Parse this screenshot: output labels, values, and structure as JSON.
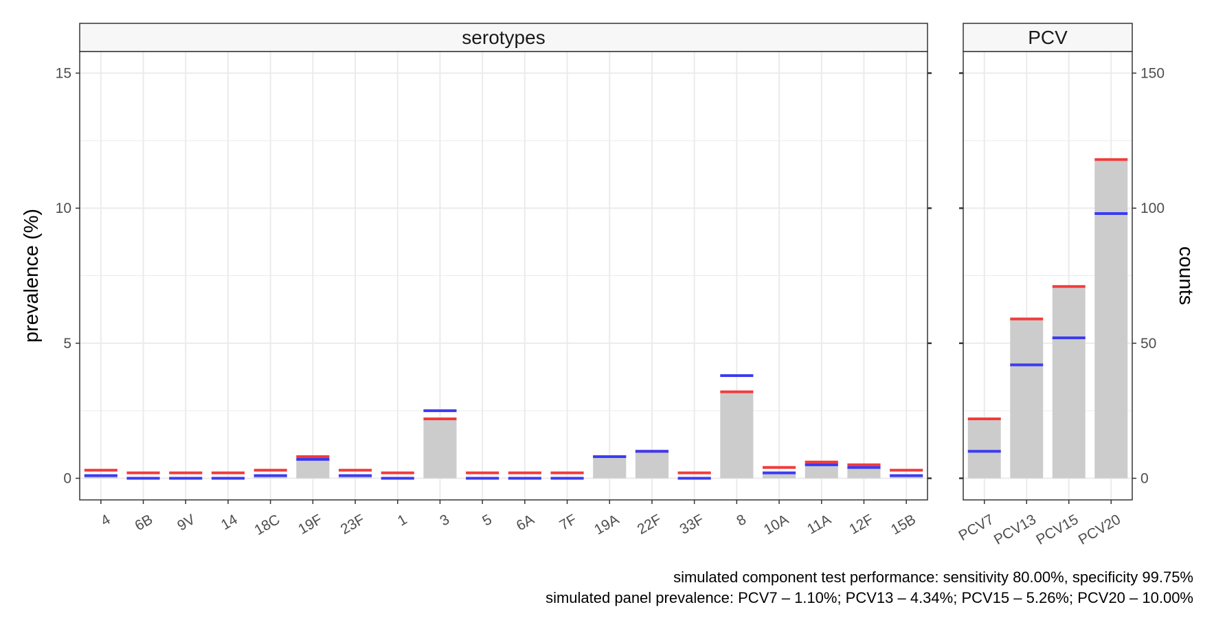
{
  "chart_data": [
    {
      "type": "bar",
      "panel_title": "serotypes",
      "ylabel": "prevalence (%)",
      "ylim": [
        -0.8,
        15.8
      ],
      "yticks": [
        0,
        5,
        10,
        15
      ],
      "secondary_ylabel": "counts",
      "secondary_yticks": [
        0,
        50,
        100,
        150
      ],
      "grid": true,
      "categories": [
        "4",
        "6B",
        "9V",
        "14",
        "18C",
        "19F",
        "23F",
        "1",
        "3",
        "5",
        "6A",
        "7F",
        "19A",
        "22F",
        "33F",
        "8",
        "10A",
        "11A",
        "12F",
        "15B"
      ],
      "series": [
        {
          "role": "bar",
          "values": [
            0.1,
            0.0,
            0.0,
            0.0,
            0.1,
            0.7,
            0.1,
            0.0,
            2.15,
            0.0,
            0.0,
            0.0,
            0.8,
            1.0,
            0.0,
            3.15,
            0.2,
            0.55,
            0.4,
            0.1
          ]
        },
        {
          "role": "red-marker",
          "values": [
            0.3,
            0.2,
            0.2,
            0.2,
            0.3,
            0.8,
            0.3,
            0.2,
            2.2,
            0.2,
            0.2,
            0.2,
            0.8,
            1.0,
            0.2,
            3.2,
            0.4,
            0.6,
            0.5,
            0.3
          ]
        },
        {
          "role": "blue-marker",
          "values": [
            0.1,
            0.0,
            0.0,
            0.0,
            0.1,
            0.7,
            0.1,
            0.0,
            2.5,
            0.0,
            0.0,
            0.0,
            0.8,
            1.0,
            0.0,
            3.8,
            0.2,
            0.5,
            0.4,
            0.1
          ]
        }
      ]
    },
    {
      "type": "bar",
      "panel_title": "PCV",
      "ylim": [
        -0.8,
        15.8
      ],
      "categories": [
        "PCV7",
        "PCV13",
        "PCV15",
        "PCV20"
      ],
      "series": [
        {
          "role": "bar",
          "values": [
            2.15,
            5.85,
            7.05,
            11.75
          ]
        },
        {
          "role": "red-marker",
          "values": [
            2.2,
            5.9,
            7.1,
            11.8
          ]
        },
        {
          "role": "blue-marker",
          "values": [
            1.0,
            4.2,
            5.2,
            9.8
          ]
        }
      ]
    }
  ],
  "colors": {
    "bar": "#cccccc",
    "red_marker": "#f23b3b",
    "blue_marker": "#3b3bf2",
    "strip_bg": "#f7f7f7",
    "grid": "#ebebeb"
  },
  "caption": {
    "line1": "simulated component test performance: sensitivity 80.00%, specificity 99.75%",
    "line2": "simulated panel prevalence: PCV7 – 1.10%; PCV13 – 4.34%; PCV15 – 5.26%; PCV20 – 10.00%"
  }
}
